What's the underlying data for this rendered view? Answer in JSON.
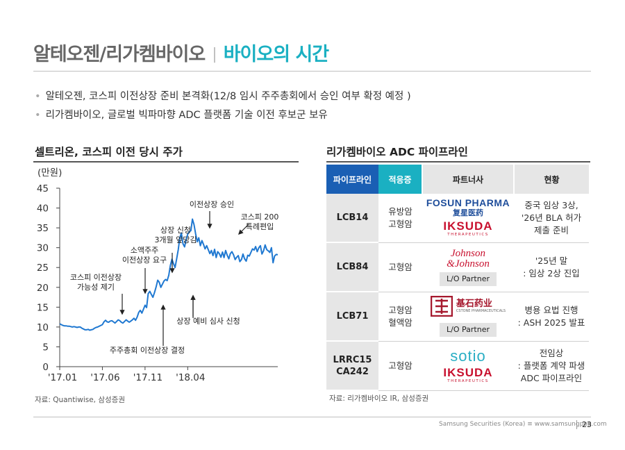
{
  "header": {
    "company": "알테오젠/리가켐바이오",
    "separator": "|",
    "topic": "바이오의 시간"
  },
  "bullets": [
    "알테오젠, 코스피 이전상장 준비 본격화(12/8 임시 주주총회에서 승인 여부 확정 예정 )",
    "리가켐바이오, 글로벌 빅파마향 ADC 플랫폼 기술 이전 후보군 보유"
  ],
  "left_section": {
    "title": "셀트리온, 코스피 이전 당시 주가",
    "source": "자료: Quantiwise, 삼성증권"
  },
  "chart_data": {
    "type": "line",
    "title": "셀트리온, 코스피 이전 당시 주가",
    "unit_label": "(만원)",
    "ylim": [
      0,
      45
    ],
    "yticks": [
      "0",
      "5",
      "10",
      "15",
      "20",
      "25",
      "30",
      "35",
      "40",
      "45"
    ],
    "xticks": [
      "'17.01",
      "'17.06",
      "'17.11",
      "'18.04"
    ],
    "color": "#1f78d1",
    "x_index": [
      0,
      3,
      6,
      9,
      12,
      15,
      18,
      21,
      24,
      27,
      30,
      33,
      36,
      39,
      42,
      45,
      48,
      51,
      54,
      57,
      60,
      63,
      66,
      69,
      72,
      75,
      78,
      81,
      84,
      87,
      90,
      93,
      96,
      99,
      102,
      105,
      108,
      111,
      114,
      117,
      120,
      123,
      126,
      129,
      132,
      135,
      138,
      141,
      144,
      147,
      150,
      153,
      156,
      159,
      162,
      165,
      168,
      171,
      174,
      177,
      180,
      183,
      186,
      189,
      192,
      195,
      198,
      201,
      204,
      207,
      210,
      213,
      216,
      219,
      222,
      225,
      228,
      231,
      234,
      237,
      240,
      243,
      246,
      249,
      252,
      255,
      258,
      261,
      264,
      267,
      270,
      273,
      276,
      279,
      282,
      285,
      288,
      291,
      294,
      297,
      300,
      303,
      306,
      309,
      312,
      315,
      318,
      321,
      324,
      327,
      330,
      333,
      336,
      339,
      342,
      345,
      348,
      351,
      354,
      357,
      360,
      363,
      366,
      369,
      372,
      375,
      378,
      381,
      384,
      387,
      390,
      393,
      396,
      399,
      402,
      405,
      408,
      411,
      414
    ],
    "values": [
      10.8,
      10.6,
      10.4,
      10.3,
      10.3,
      10.2,
      10.2,
      10.1,
      10.0,
      10.1,
      10.0,
      9.9,
      10.0,
      10.0,
      9.7,
      9.5,
      9.3,
      9.3,
      9.4,
      9.2,
      9.3,
      9.4,
      9.7,
      9.9,
      10.0,
      10.2,
      10.4,
      10.6,
      11.3,
      11.7,
      11.3,
      11.2,
      11.5,
      11.6,
      11.3,
      11.0,
      11.4,
      11.8,
      11.6,
      11.2,
      11.0,
      11.4,
      11.8,
      11.5,
      11.2,
      11.5,
      11.8,
      12.2,
      11.7,
      12.5,
      13.7,
      14.2,
      13.5,
      14.5,
      15.5,
      14.9,
      18.4,
      19.0,
      18.2,
      17.5,
      18.7,
      20.1,
      21.8,
      21.3,
      20.0,
      20.8,
      21.6,
      22.0,
      21.7,
      23.0,
      25.5,
      27.1,
      26.0,
      25.0,
      27.2,
      29.5,
      32.5,
      33.7,
      31.0,
      30.2,
      32.0,
      33.4,
      34.0,
      34.3,
      37.2,
      35.8,
      33.5,
      31.5,
      32.5,
      30.5,
      31.8,
      30.8,
      29.7,
      30.5,
      29.5,
      28.5,
      29.3,
      28.0,
      29.6,
      27.5,
      29.0,
      28.5,
      27.6,
      28.9,
      27.5,
      29.3,
      28.1,
      27.2,
      28.5,
      29.0,
      28.2,
      27.0,
      27.6,
      28.0,
      26.5,
      27.0,
      28.4,
      27.2,
      26.6,
      28.1,
      27.9,
      28.8,
      29.7,
      29.4,
      30.3,
      29.0,
      30.0,
      30.5,
      28.4,
      29.2,
      30.7,
      29.5,
      29.2,
      28.8,
      30.0,
      26.2,
      27.9,
      28.3,
      28.2
    ],
    "annotations": [
      {
        "lines": [
          "코스피 이전상장",
          "가능성 제기"
        ],
        "x_index": 93,
        "value": 13.5,
        "direction": "down"
      },
      {
        "lines": [
          "소액주주",
          "이전상장 요구"
        ],
        "x_index": 126,
        "value": 18.5,
        "direction": "down"
      },
      {
        "lines": [
          "상장 신청",
          "3개월 앞당김"
        ],
        "x_index": 165,
        "value": 23.5,
        "direction": "down"
      },
      {
        "lines": [
          "이전상장 승인"
        ],
        "x_index": 217,
        "value": 35,
        "direction": "down"
      },
      {
        "lines": [
          "코스피 200",
          "특례편입"
        ],
        "x_index": 235,
        "value": 34.5,
        "direction": "down-left"
      },
      {
        "lines": [
          "상장 예비 심사 신청"
        ],
        "x_index": 195,
        "value": 15.5,
        "direction": "up"
      },
      {
        "lines": [
          "주주총회 이전상장 결정"
        ],
        "x_index": 148,
        "value": 14.5,
        "direction": "up"
      }
    ]
  },
  "right_section": {
    "title": "리가켐바이오 ADC 파이프라인",
    "source": "자료: 리가켐바이오 IR, 삼성증권",
    "columns": [
      "파이프라인",
      "적응증",
      "파트너사",
      "현황"
    ],
    "rows": [
      {
        "pipeline": "LCB14",
        "indication": "유방암\n고형암",
        "partner": "fosun-iksuda",
        "status": "중국 임상 3상,\n'26년 BLA 허가\n제출 준비"
      },
      {
        "pipeline": "LCB84",
        "indication": "고형암",
        "partner": "jnj",
        "status": "'25년 말\n: 임상 2상 진입"
      },
      {
        "pipeline": "LCB71",
        "indication": "고형암\n혈액암",
        "partner": "cstone",
        "status": "병용 요법 진행\n: ASH 2025 발표"
      },
      {
        "pipeline": "LRRC15\nCA242",
        "indication": "고형암",
        "partner": "sotio-iksuda",
        "status": "전임상\n: 플랫폼 계약 파생\nADC 파이프라인"
      }
    ],
    "partner_labels": {
      "fosun": "FOSUN PHARMA",
      "fosun_cn": "复星医药",
      "iksuda": "IKSUDA",
      "iksuda_sub": "THERAPEUTICS",
      "jnj_1": "Johnson",
      "jnj_2": "&Johnson",
      "cstone_cn": "基石药业",
      "cstone_en": "CSTONE PHARMACEUTICALS",
      "sotio": "sotio",
      "lo_partner": "L/O Partner"
    }
  },
  "footer": {
    "company": "Samsung Securities (Korea) ",
    "sep": "≡",
    "url": " www.samsungpop.com",
    "page": "23"
  }
}
